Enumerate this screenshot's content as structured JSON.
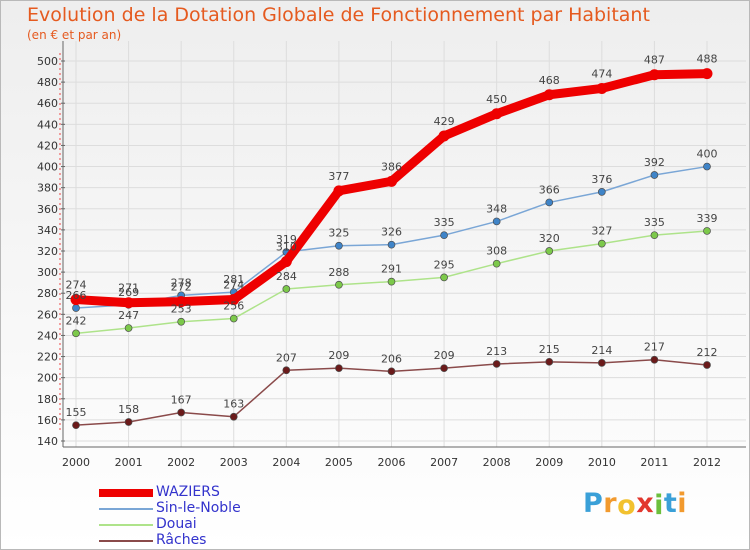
{
  "header": {
    "title": "Evolution de la Dotation Globale de Fonctionnement par Habitant",
    "subtitle": "(en € et par an)"
  },
  "chart_data": {
    "type": "line",
    "title": "Evolution de la Dotation Globale de Fonctionnement par Habitant",
    "subtitle": "(en € et par an)",
    "xlabel": "",
    "ylabel": "",
    "x": [
      "2000",
      "2001",
      "2002",
      "2003",
      "2004",
      "2005",
      "2006",
      "2007",
      "2008",
      "2009",
      "2010",
      "2011",
      "2012"
    ],
    "ylim": [
      140,
      500
    ],
    "yticks": [
      140,
      160,
      180,
      200,
      220,
      240,
      260,
      280,
      300,
      320,
      340,
      360,
      380,
      400,
      420,
      440,
      460,
      480,
      500
    ],
    "grid": true,
    "legend_position": "bottom-left",
    "series": [
      {
        "name": "WAZIERS",
        "color": "#ee0000",
        "point_color": "#ee0000",
        "style": "thick",
        "values": [
          274,
          271,
          272,
          274,
          310,
          377,
          386,
          429,
          450,
          468,
          474,
          487,
          488
        ]
      },
      {
        "name": "Sin-le-Noble",
        "color": "#7aa6d6",
        "point_color": "#3f84c8",
        "style": "thin",
        "values": [
          266,
          269,
          278,
          281,
          319,
          325,
          326,
          335,
          348,
          366,
          376,
          392,
          400
        ]
      },
      {
        "name": "Douai",
        "color": "#aee38a",
        "point_color": "#7cc94a",
        "style": "thin",
        "values": [
          242,
          247,
          253,
          256,
          284,
          288,
          291,
          295,
          308,
          320,
          327,
          335,
          339
        ]
      },
      {
        "name": "Râches",
        "color": "#8a4a4a",
        "point_color": "#6b1a1a",
        "style": "thin",
        "values": [
          155,
          158,
          167,
          163,
          207,
          209,
          206,
          209,
          213,
          215,
          214,
          217,
          212
        ]
      }
    ]
  },
  "brand": {
    "logo_letters": [
      "P",
      "r",
      "o",
      "x",
      "i",
      "t",
      "i"
    ],
    "logo_colors": [
      "#3aa0d8",
      "#f29a2e",
      "#f2c12e",
      "#e2372e",
      "#6cbf3c",
      "#3aa0d8",
      "#f29a2e"
    ]
  }
}
